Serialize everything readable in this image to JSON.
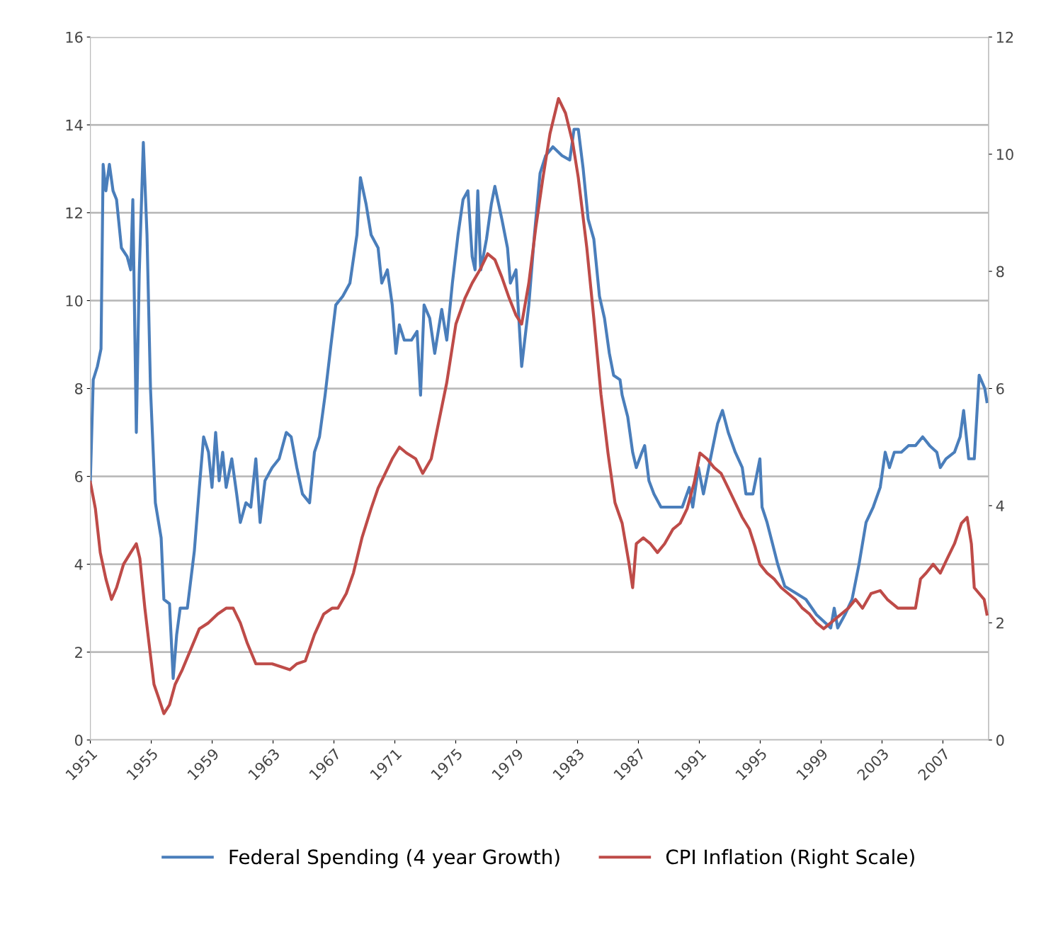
{
  "chart_data": {
    "type": "line",
    "xlim": [
      1951,
      2010
    ],
    "xticks": [
      1951,
      1955,
      1959,
      1963,
      1967,
      1971,
      1975,
      1979,
      1983,
      1987,
      1991,
      1995,
      1999,
      2003,
      2007
    ],
    "ylim": [
      0,
      16
    ],
    "yticks": [
      0,
      2,
      4,
      6,
      8,
      10,
      12,
      14,
      16
    ],
    "y2lim": [
      0,
      12
    ],
    "y2ticks": [
      0,
      2,
      4,
      6,
      8,
      10,
      12
    ],
    "grid": "y",
    "legend": "bottom",
    "line_style": "solid",
    "marker": "none",
    "series": [
      {
        "name": "Federal Spending (4 year Growth)",
        "color": "#4a7ebb",
        "x": [
          1951.0,
          1951.19,
          1951.46,
          1951.7,
          1951.84,
          1952.02,
          1952.25,
          1952.49,
          1952.72,
          1953.04,
          1953.42,
          1953.65,
          1953.79,
          1954.02,
          1954.21,
          1954.48,
          1954.72,
          1954.95,
          1955.27,
          1955.65,
          1955.83,
          1956.2,
          1956.44,
          1956.67,
          1956.9,
          1957.37,
          1957.83,
          1958.16,
          1958.44,
          1958.76,
          1958.99,
          1959.23,
          1959.46,
          1959.69,
          1959.92,
          1960.29,
          1960.61,
          1960.85,
          1961.22,
          1961.54,
          1961.87,
          1962.15,
          1962.47,
          1962.94,
          1963.4,
          1963.87,
          1964.19,
          1964.56,
          1964.93,
          1965.4,
          1965.72,
          1966.05,
          1966.42,
          1966.79,
          1967.12,
          1967.58,
          1968.05,
          1968.51,
          1968.74,
          1969.11,
          1969.44,
          1969.9,
          1970.14,
          1970.51,
          1970.83,
          1971.07,
          1971.3,
          1971.62,
          1972.09,
          1972.46,
          1972.69,
          1972.92,
          1973.29,
          1973.62,
          1974.08,
          1974.41,
          1974.78,
          1975.15,
          1975.48,
          1975.8,
          1976.08,
          1976.27,
          1976.45,
          1976.64,
          1977.02,
          1977.34,
          1977.57,
          1978.03,
          1978.4,
          1978.59,
          1978.96,
          1979.33,
          1979.8,
          1980.17,
          1980.54,
          1980.91,
          1981.38,
          1981.98,
          1982.49,
          1982.77,
          1983.05,
          1983.37,
          1983.7,
          1984.07,
          1984.44,
          1984.77,
          1985.09,
          1985.37,
          1985.79,
          1985.93,
          1986.3,
          1986.62,
          1986.86,
          1987.23,
          1987.41,
          1987.69,
          1988.02,
          1988.48,
          1989.18,
          1989.88,
          1990.34,
          1990.57,
          1990.94,
          1991.27,
          1991.73,
          1992.2,
          1992.52,
          1992.9,
          1993.36,
          1993.82,
          1994.06,
          1994.52,
          1994.98,
          1995.12,
          1995.45,
          1995.82,
          1996.15,
          1996.61,
          1997.31,
          1998.0,
          1998.7,
          1999.17,
          1999.63,
          1999.86,
          2000.09,
          2000.56,
          2001.03,
          2001.49,
          2001.95,
          2002.42,
          2002.88,
          2003.21,
          2003.49,
          2003.81,
          2004.27,
          2004.74,
          2005.2,
          2005.67,
          2006.13,
          2006.6,
          2006.83,
          2007.2,
          2007.76,
          2008.13,
          2008.36,
          2008.69,
          2009.06,
          2009.38,
          2009.75,
          2009.89
        ],
        "values": [
          5.9,
          8.2,
          8.5,
          8.9,
          13.1,
          12.5,
          13.1,
          12.5,
          12.3,
          11.2,
          11.0,
          10.7,
          12.3,
          7.0,
          10.6,
          13.6,
          11.5,
          8.0,
          5.4,
          4.6,
          3.2,
          3.1,
          1.4,
          2.4,
          3.0,
          3.0,
          4.3,
          5.75,
          6.9,
          6.55,
          5.75,
          7.0,
          5.9,
          6.55,
          5.75,
          6.4,
          5.6,
          4.95,
          5.4,
          5.3,
          6.4,
          4.95,
          5.9,
          6.2,
          6.4,
          7.0,
          6.9,
          6.2,
          5.6,
          5.4,
          6.55,
          6.9,
          7.85,
          8.95,
          9.9,
          10.1,
          10.4,
          11.5,
          12.8,
          12.2,
          11.5,
          11.2,
          10.4,
          10.7,
          9.9,
          8.8,
          9.45,
          9.1,
          9.1,
          9.3,
          7.85,
          9.9,
          9.6,
          8.8,
          9.8,
          9.1,
          10.4,
          11.5,
          12.3,
          12.5,
          11.0,
          10.7,
          12.5,
          10.7,
          11.4,
          12.2,
          12.6,
          11.85,
          11.2,
          10.4,
          10.7,
          8.5,
          9.9,
          11.5,
          12.9,
          13.3,
          13.5,
          13.3,
          13.2,
          13.9,
          13.9,
          13.0,
          11.85,
          11.4,
          10.1,
          9.6,
          8.8,
          8.3,
          8.2,
          7.85,
          7.35,
          6.55,
          6.2,
          6.55,
          6.7,
          5.9,
          5.6,
          5.3,
          5.3,
          5.3,
          5.75,
          5.3,
          6.2,
          5.6,
          6.4,
          7.2,
          7.5,
          7.0,
          6.55,
          6.2,
          5.6,
          5.6,
          6.4,
          5.3,
          4.95,
          4.45,
          4.0,
          3.5,
          3.35,
          3.2,
          2.85,
          2.7,
          2.55,
          3.0,
          2.55,
          2.85,
          3.2,
          4.0,
          4.95,
          5.3,
          5.75,
          6.55,
          6.2,
          6.55,
          6.55,
          6.7,
          6.7,
          6.9,
          6.7,
          6.55,
          6.2,
          6.4,
          6.55,
          6.9,
          7.5,
          6.4,
          6.4,
          8.3,
          8.0,
          7.7
        ]
      },
      {
        "name": "CPI Inflation (Right Scale)",
        "color": "#be4b48",
        "axis": "y2",
        "x": [
          1951.0,
          1951.33,
          1951.65,
          1952.02,
          1952.39,
          1952.72,
          1953.18,
          1953.65,
          1954.02,
          1954.25,
          1954.58,
          1954.9,
          1955.18,
          1955.51,
          1955.83,
          1956.2,
          1956.57,
          1957.04,
          1957.6,
          1958.16,
          1958.76,
          1959.36,
          1959.92,
          1960.38,
          1960.85,
          1961.31,
          1961.87,
          1962.33,
          1962.94,
          1963.54,
          1964.1,
          1964.56,
          1965.12,
          1965.72,
          1966.33,
          1966.88,
          1967.26,
          1967.81,
          1968.28,
          1968.84,
          1969.44,
          1969.9,
          1970.37,
          1970.83,
          1971.3,
          1971.76,
          1972.37,
          1972.83,
          1973.39,
          1973.86,
          1974.41,
          1975.01,
          1975.62,
          1976.08,
          1976.64,
          1977.1,
          1977.57,
          1978.03,
          1978.5,
          1978.96,
          1979.33,
          1979.8,
          1980.26,
          1980.73,
          1981.19,
          1981.75,
          1982.21,
          1982.68,
          1983.05,
          1983.61,
          1984.07,
          1984.54,
          1985.0,
          1985.46,
          1985.93,
          1986.39,
          1986.62,
          1986.86,
          1987.32,
          1987.79,
          1988.25,
          1988.72,
          1989.27,
          1989.74,
          1990.2,
          1990.67,
          1991.04,
          1991.5,
          1991.97,
          1992.43,
          1992.9,
          1993.36,
          1993.82,
          1994.29,
          1994.66,
          1994.98,
          1995.45,
          1995.91,
          1996.38,
          1996.84,
          1997.31,
          1997.77,
          1998.24,
          1998.7,
          1999.17,
          1999.63,
          2000.33,
          2000.79,
          2001.26,
          2001.72,
          2002.28,
          2002.88,
          2003.35,
          2004.04,
          2004.74,
          2005.2,
          2005.53,
          2005.9,
          2006.36,
          2006.83,
          2007.29,
          2007.76,
          2008.22,
          2008.59,
          2008.87,
          2009.06,
          2009.38,
          2009.71,
          2009.89
        ],
        "values": [
          4.4,
          3.95,
          3.2,
          2.75,
          2.4,
          2.6,
          3.0,
          3.2,
          3.35,
          3.1,
          2.25,
          1.55,
          0.95,
          0.7,
          0.45,
          0.6,
          0.95,
          1.2,
          1.55,
          1.9,
          2.0,
          2.15,
          2.25,
          2.25,
          2.0,
          1.65,
          1.3,
          1.3,
          1.3,
          1.25,
          1.2,
          1.3,
          1.35,
          1.8,
          2.15,
          2.25,
          2.25,
          2.5,
          2.85,
          3.45,
          3.95,
          4.3,
          4.55,
          4.8,
          5.0,
          4.9,
          4.8,
          4.55,
          4.8,
          5.4,
          6.1,
          7.1,
          7.55,
          7.8,
          8.05,
          8.3,
          8.2,
          7.9,
          7.55,
          7.25,
          7.1,
          7.8,
          8.75,
          9.6,
          10.35,
          10.95,
          10.7,
          10.2,
          9.6,
          8.4,
          7.2,
          5.9,
          4.9,
          4.05,
          3.7,
          3.0,
          2.6,
          3.35,
          3.45,
          3.35,
          3.2,
          3.35,
          3.6,
          3.7,
          3.95,
          4.4,
          4.9,
          4.8,
          4.65,
          4.55,
          4.3,
          4.05,
          3.8,
          3.6,
          3.3,
          3.0,
          2.85,
          2.75,
          2.6,
          2.5,
          2.4,
          2.25,
          2.15,
          2.0,
          1.9,
          2.0,
          2.15,
          2.25,
          2.4,
          2.25,
          2.5,
          2.55,
          2.4,
          2.25,
          2.25,
          2.25,
          2.75,
          2.85,
          3.0,
          2.85,
          3.1,
          3.35,
          3.7,
          3.8,
          3.35,
          2.6,
          2.5,
          2.4,
          2.15
        ]
      }
    ]
  }
}
